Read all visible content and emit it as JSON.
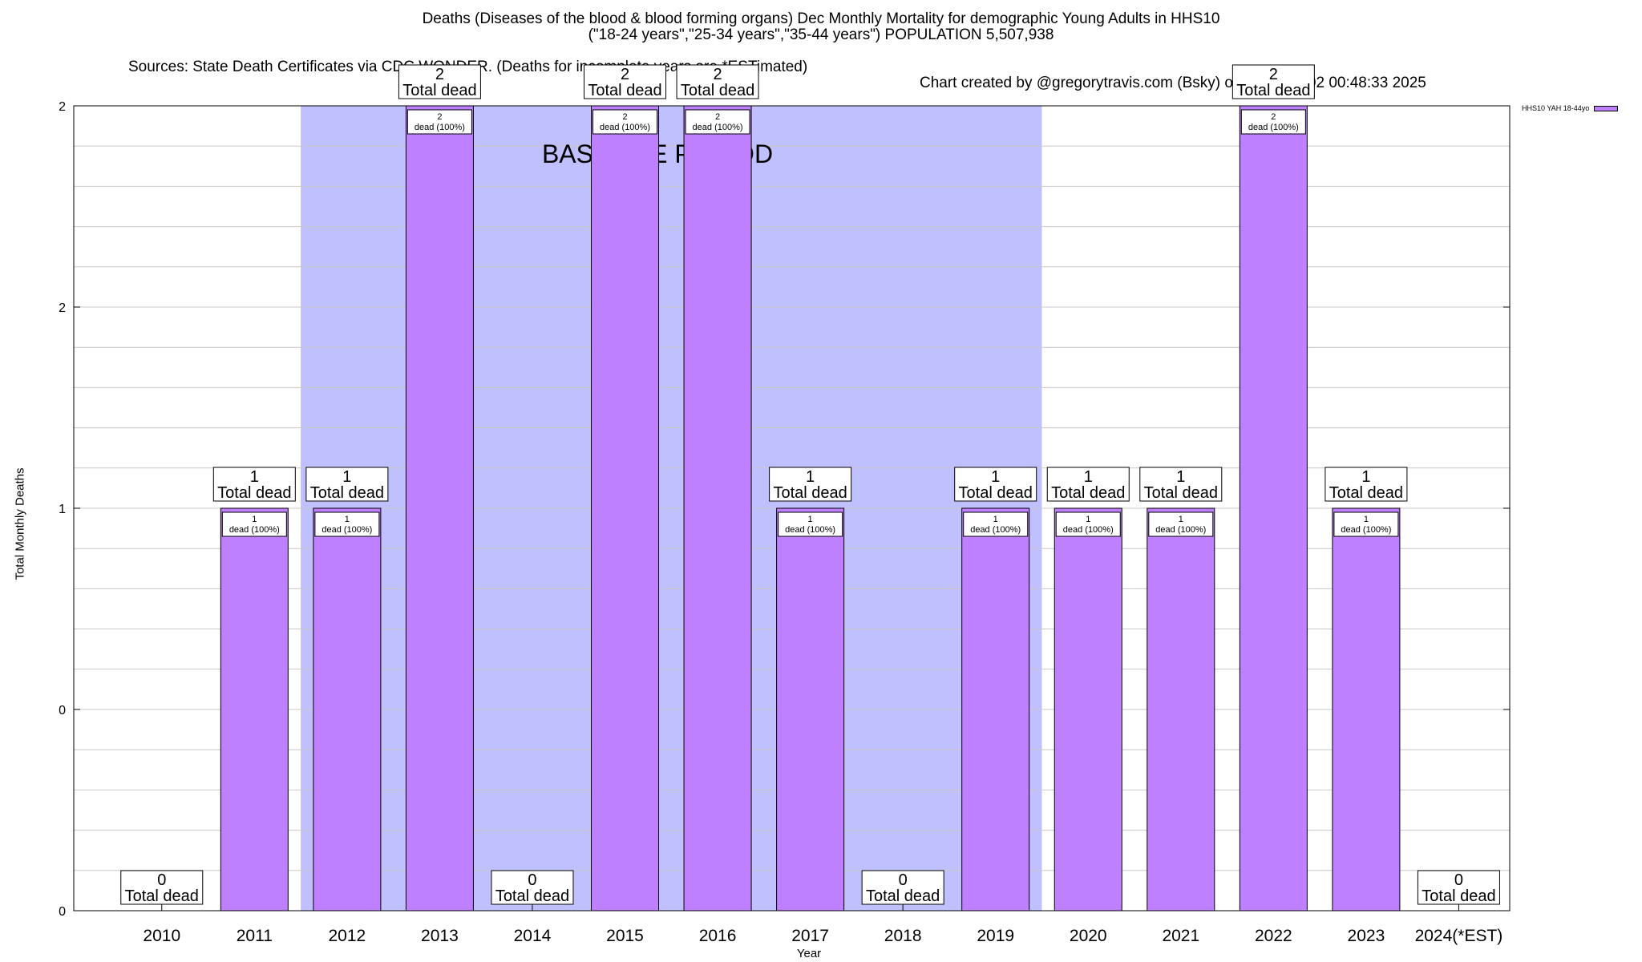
{
  "chart_data": {
    "type": "bar",
    "title": "Deaths (Diseases of the blood & blood forming organs) Dec Monthly Mortality for demographic Young Adults in HHS10",
    "subtitle": "(\"18-24 years\",\"25-34 years\",\"35-44 years\") POPULATION 5,507,938",
    "source": "Sources: State Death Certificates via CDC WONDER. (Deaths for incomplete years are *ESTimated)",
    "credit": "Chart created by @gregorytravis.com (Bsky) on Sun Feb 02 00:48:33 2025",
    "xlabel": "Year",
    "ylabel": "Total Monthly Deaths",
    "categories": [
      "2010",
      "2011",
      "2012",
      "2013",
      "2014",
      "2015",
      "2016",
      "2017",
      "2018",
      "2019",
      "2020",
      "2021",
      "2022",
      "2023",
      "2024(*EST)"
    ],
    "series": [
      {
        "name": "HHS10 YAH 18-44yo",
        "color": "#bf80ff",
        "values": [
          0,
          1,
          1,
          2,
          0,
          2,
          2,
          1,
          0,
          1,
          1,
          1,
          2,
          1,
          0
        ]
      }
    ],
    "ylim": [
      0,
      2
    ],
    "yticks": [
      {
        "value": 0,
        "label": "0"
      },
      {
        "value": 0.5,
        "label": "0"
      },
      {
        "value": 1,
        "label": "1"
      },
      {
        "value": 1.5,
        "label": "2"
      },
      {
        "value": 2,
        "label": "2"
      }
    ],
    "grid": true,
    "legend_position": "top-right",
    "total_label": "Total dead",
    "bar_label_suffix": "dead (100%)",
    "baseline": {
      "label": "BASELINE PERIOD",
      "start": "2012",
      "end": "2019",
      "color": "#c0c0ff"
    }
  }
}
